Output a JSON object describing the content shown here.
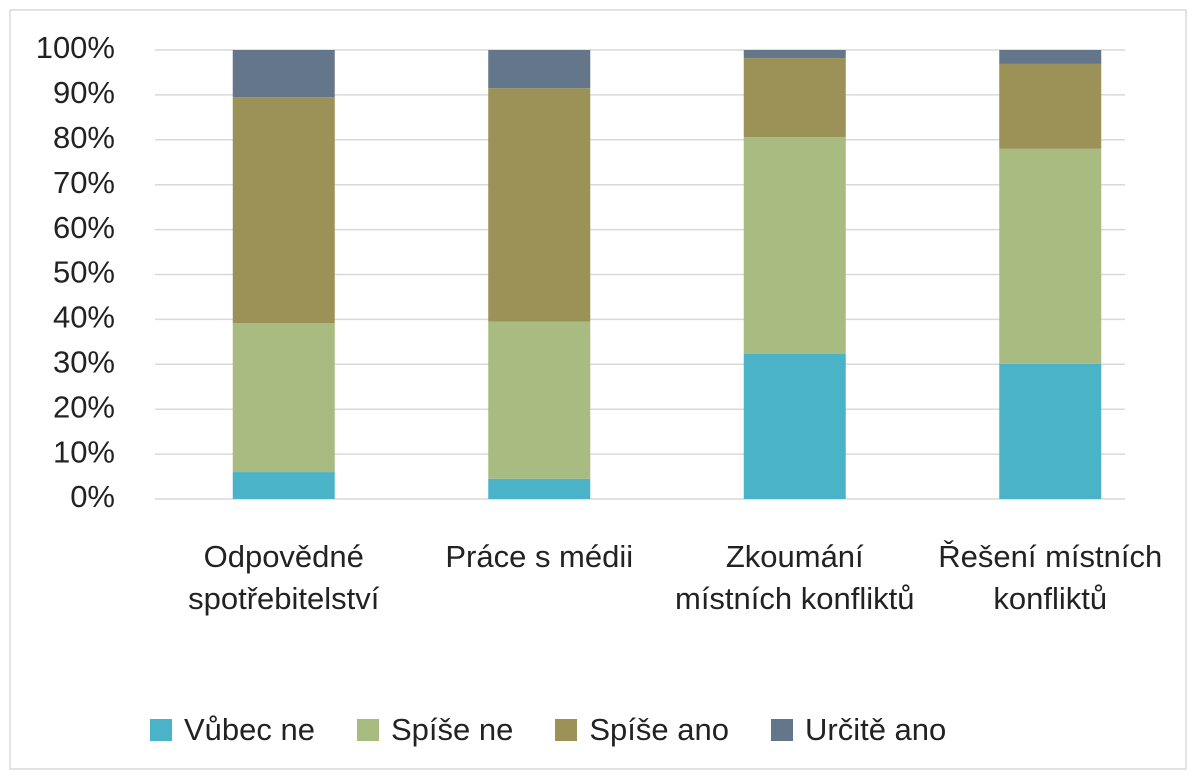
{
  "chart_data": {
    "type": "bar",
    "stacked": true,
    "categories": [
      "Odpovědné spotřebitelství",
      "Práce s médii",
      "Zkoumání místních konfliktů",
      "Řešení místních konfliktů"
    ],
    "series": [
      {
        "name": "Vůbec ne",
        "color": "#4bb3c8",
        "values": [
          6,
          4.5,
          32.3,
          30.1
        ]
      },
      {
        "name": "Spíše ne",
        "color": "#a8bb80",
        "values": [
          33.2,
          35,
          48.3,
          47.9
        ]
      },
      {
        "name": "Spíše ano",
        "color": "#9c9156",
        "values": [
          50.3,
          52,
          17.6,
          18.9
        ]
      },
      {
        "name": "Určitě ano",
        "color": "#64768a",
        "values": [
          10.5,
          8.5,
          1.8,
          3.1
        ]
      }
    ],
    "ylim": [
      0,
      100
    ],
    "yticks": [
      {
        "value": 0,
        "label": "0%"
      },
      {
        "value": 10,
        "label": "10%"
      },
      {
        "value": 20,
        "label": "20%"
      },
      {
        "value": 30,
        "label": "30%"
      },
      {
        "value": 40,
        "label": "40%"
      },
      {
        "value": 50,
        "label": "50%"
      },
      {
        "value": 60,
        "label": "60%"
      },
      {
        "value": 70,
        "label": "70%"
      },
      {
        "value": 80,
        "label": "80%"
      },
      {
        "value": 90,
        "label": "90%"
      },
      {
        "value": 100,
        "label": "100%"
      }
    ],
    "grid": true,
    "legend": "bottom"
  }
}
